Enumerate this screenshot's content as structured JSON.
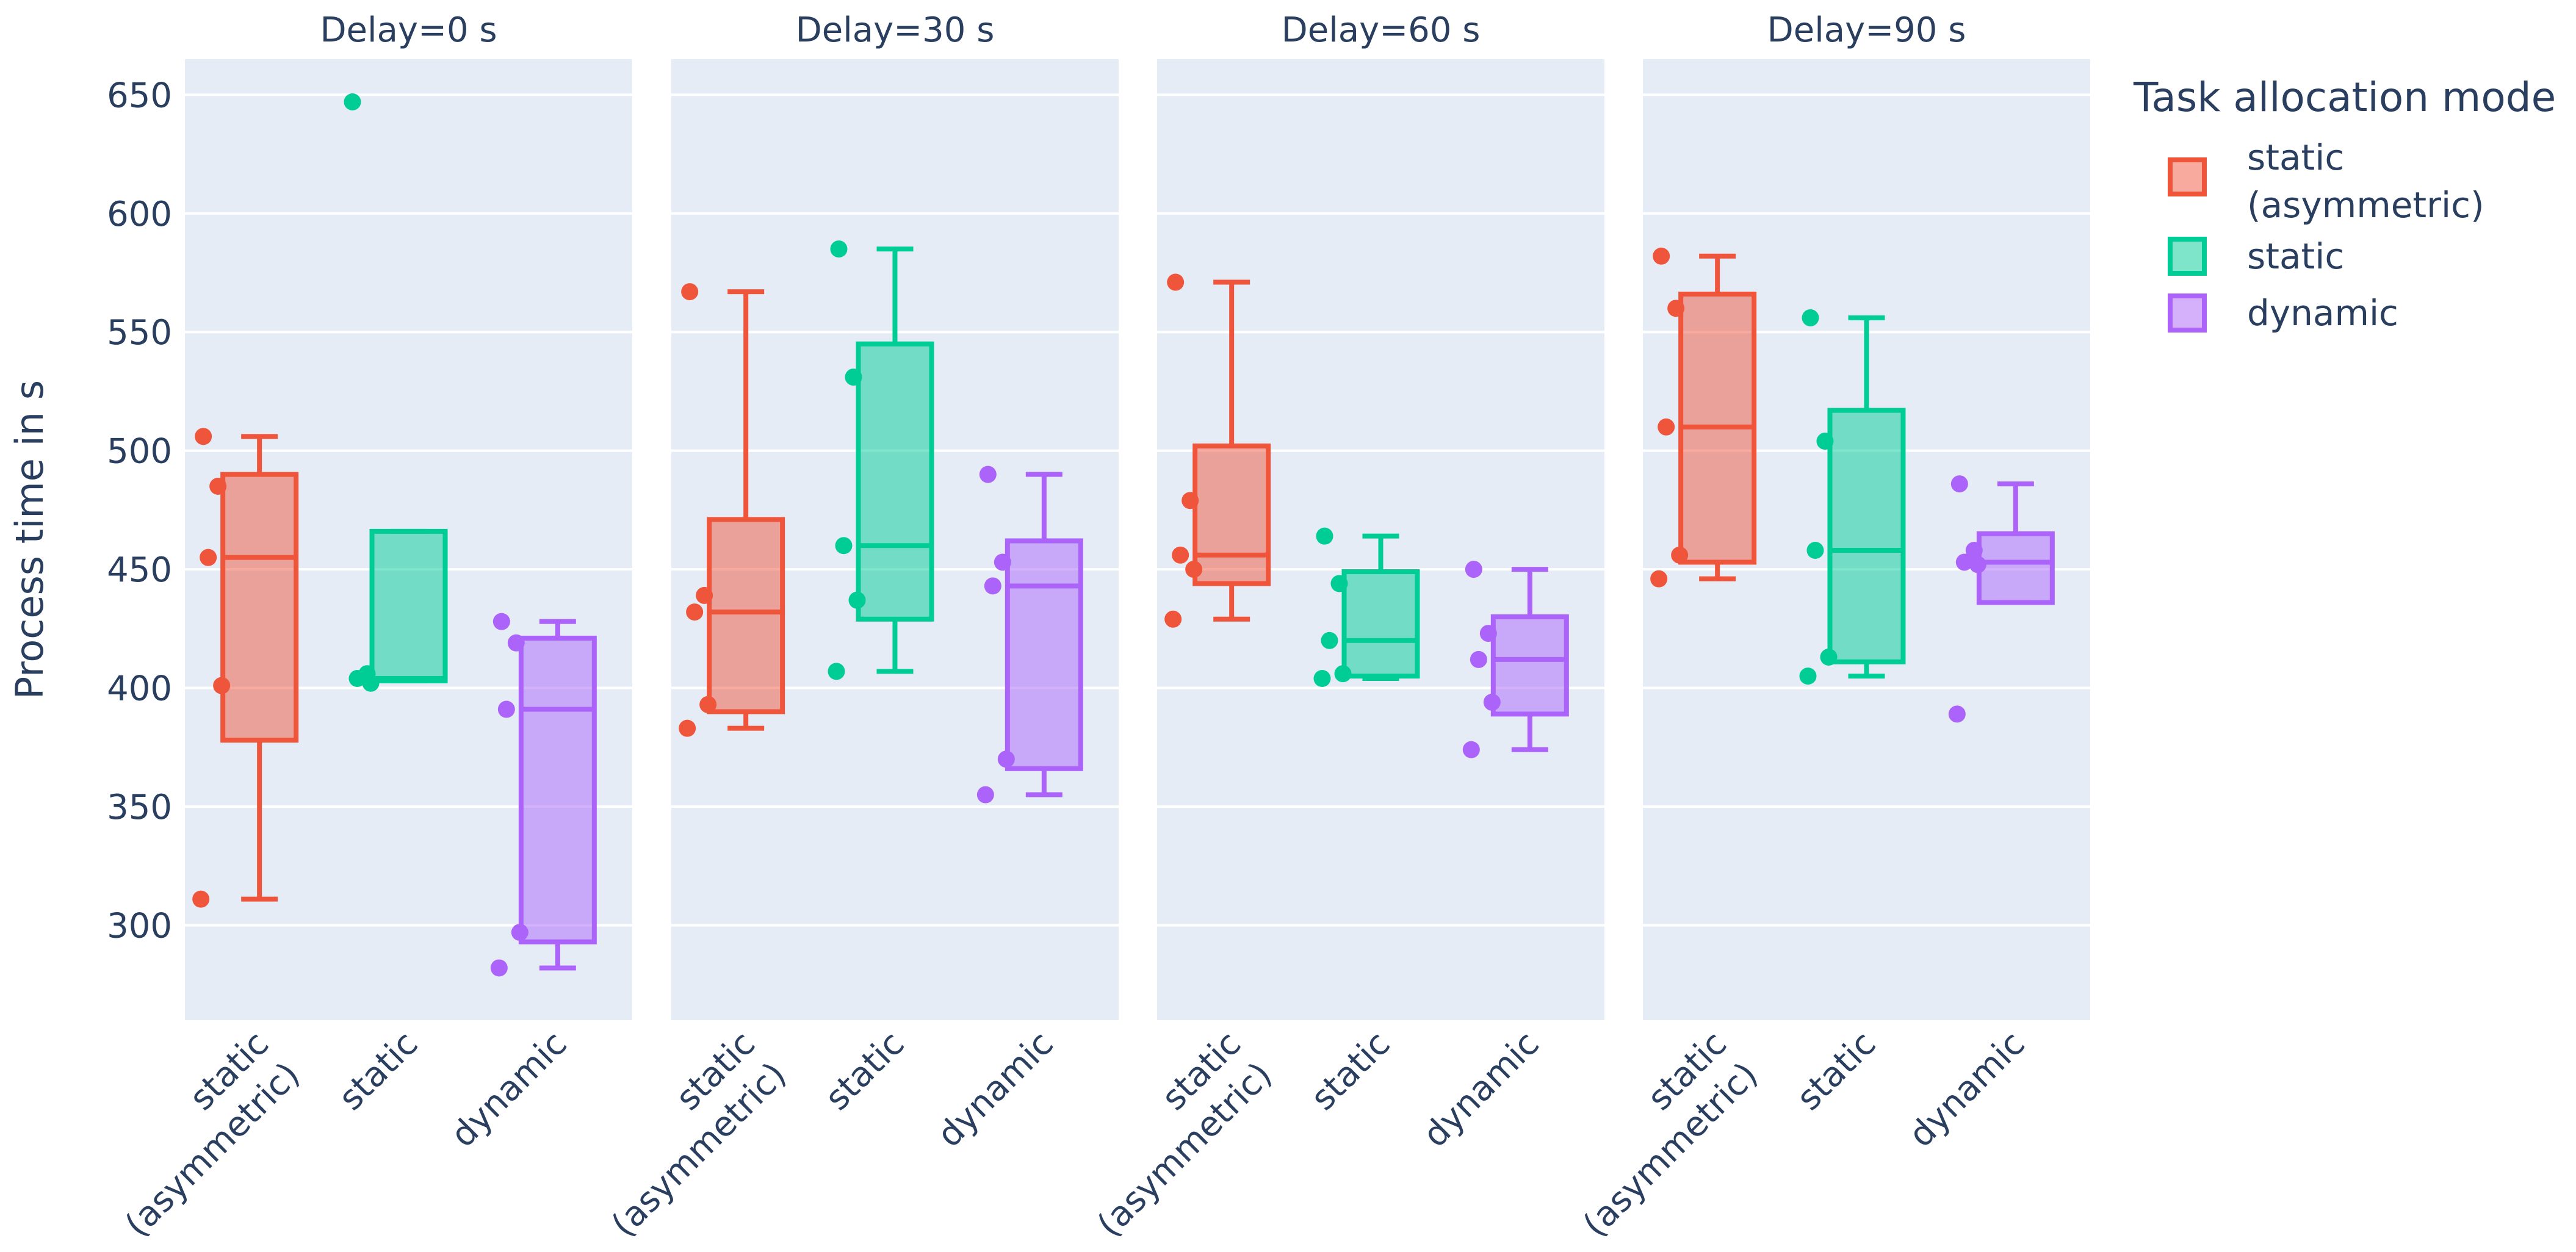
{
  "chart_data": {
    "type": "box",
    "ylabel": "Process time in s",
    "ylim": [
      260,
      665
    ],
    "yticks": [
      300,
      350,
      400,
      450,
      500,
      550,
      600,
      650
    ],
    "legend": {
      "title": "Task allocation mode",
      "position": "top-right",
      "entries": [
        {
          "key": "asym",
          "label_lines": [
            "static",
            "(asymmetric)"
          ],
          "color": "#ef553b"
        },
        {
          "key": "static",
          "label_lines": [
            "static"
          ],
          "color": "#00cc96"
        },
        {
          "key": "dynamic",
          "label_lines": [
            "dynamic"
          ],
          "color": "#ab63fa"
        }
      ]
    },
    "category_labels": [
      {
        "key": "asym",
        "lines": [
          "static",
          "(asymmetric)"
        ]
      },
      {
        "key": "static",
        "lines": [
          "static"
        ]
      },
      {
        "key": "dynamic",
        "lines": [
          "dynamic"
        ]
      }
    ],
    "panels": [
      {
        "title": "Delay=0 s",
        "boxes": [
          {
            "key": "asym",
            "lowerfence": 311,
            "q1": 378,
            "median": 455,
            "q3": 490,
            "upperfence": 506,
            "points": [
              506,
              485,
              455,
              401,
              311
            ]
          },
          {
            "key": "static",
            "lowerfence": 403,
            "q1": 403,
            "median": 404,
            "q3": 466,
            "upperfence": 466,
            "points": [
              647,
              406,
              404,
              402
            ]
          },
          {
            "key": "dynamic",
            "lowerfence": 282,
            "q1": 293,
            "median": 391,
            "q3": 421,
            "upperfence": 428,
            "points": [
              428,
              419,
              391,
              297,
              282
            ]
          }
        ]
      },
      {
        "title": "Delay=30 s",
        "boxes": [
          {
            "key": "asym",
            "lowerfence": 383,
            "q1": 390,
            "median": 432,
            "q3": 471,
            "upperfence": 567,
            "points": [
              567,
              439,
              432,
              393,
              383
            ]
          },
          {
            "key": "static",
            "lowerfence": 407,
            "q1": 429,
            "median": 460,
            "q3": 545,
            "upperfence": 585,
            "points": [
              585,
              531,
              460,
              437,
              407
            ]
          },
          {
            "key": "dynamic",
            "lowerfence": 355,
            "q1": 366,
            "median": 443,
            "q3": 462,
            "upperfence": 490,
            "points": [
              490,
              453,
              443,
              370,
              355
            ]
          }
        ]
      },
      {
        "title": "Delay=60 s",
        "boxes": [
          {
            "key": "asym",
            "lowerfence": 429,
            "q1": 444,
            "median": 456,
            "q3": 502,
            "upperfence": 571,
            "points": [
              571,
              479,
              456,
              450,
              429
            ]
          },
          {
            "key": "static",
            "lowerfence": 404,
            "q1": 405,
            "median": 420,
            "q3": 449,
            "upperfence": 464,
            "points": [
              464,
              444,
              420,
              406,
              404
            ]
          },
          {
            "key": "dynamic",
            "lowerfence": 374,
            "q1": 389,
            "median": 412,
            "q3": 430,
            "upperfence": 450,
            "points": [
              450,
              423,
              412,
              394,
              374
            ]
          }
        ]
      },
      {
        "title": "Delay=90 s",
        "boxes": [
          {
            "key": "asym",
            "lowerfence": 446,
            "q1": 453,
            "median": 510,
            "q3": 566,
            "upperfence": 582,
            "points": [
              582,
              560,
              510,
              456,
              446
            ]
          },
          {
            "key": "static",
            "lowerfence": 405,
            "q1": 411,
            "median": 458,
            "q3": 517,
            "upperfence": 556,
            "points": [
              556,
              504,
              458,
              413,
              405
            ]
          },
          {
            "key": "dynamic",
            "lowerfence": 436,
            "q1": 436,
            "median": 453,
            "q3": 465,
            "upperfence": 486,
            "points": [
              486,
              458,
              453,
              452,
              389
            ]
          }
        ]
      }
    ],
    "colors": {
      "plot_bg": "#e5ecf6",
      "grid": "#ffffff",
      "text": "#2a3f5f",
      "asym": "#ef553b",
      "static": "#00cc96",
      "dynamic": "#ab63fa"
    }
  }
}
